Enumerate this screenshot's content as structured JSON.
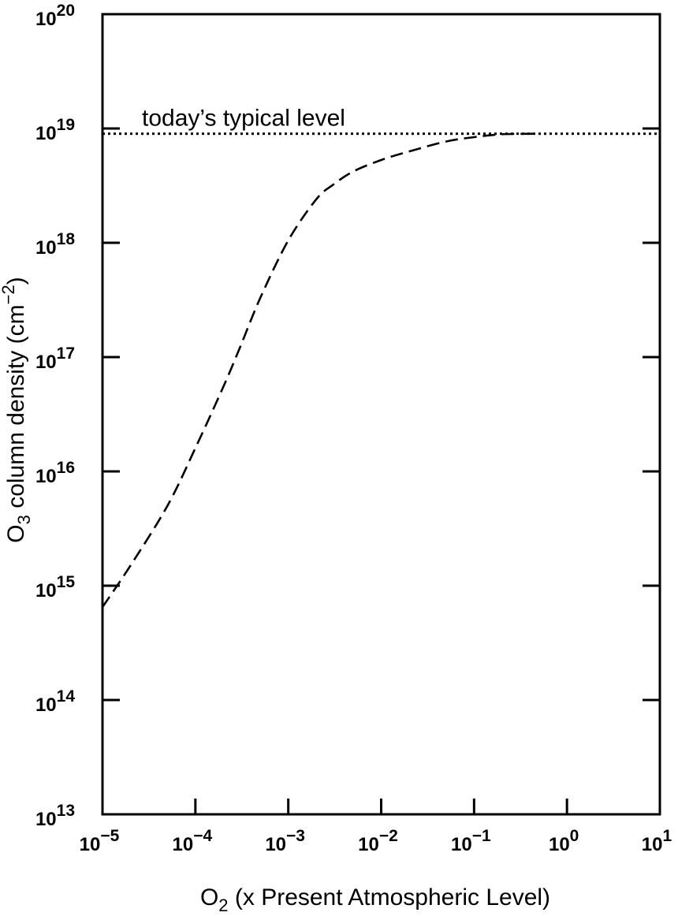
{
  "chart_data": {
    "type": "line",
    "title": "",
    "xlabel": "O₂ (x Present Atmospheric Level)",
    "ylabel": "O₃ column density (cm⁻²)",
    "xscale": "log",
    "yscale": "log",
    "xlim": [
      1e-05,
      10
    ],
    "ylim": [
      10000000000000.0,
      1e+20
    ],
    "grid": false,
    "x_ticks": [
      {
        "value": 1e-05,
        "base": "10",
        "exp": "−5"
      },
      {
        "value": 0.0001,
        "base": "10",
        "exp": "−4"
      },
      {
        "value": 0.001,
        "base": "10",
        "exp": "−3"
      },
      {
        "value": 0.01,
        "base": "10",
        "exp": "−2"
      },
      {
        "value": 0.1,
        "base": "10",
        "exp": "−1"
      },
      {
        "value": 1,
        "base": "10",
        "exp": "0"
      },
      {
        "value": 10,
        "base": "10",
        "exp": "1"
      }
    ],
    "y_ticks": [
      {
        "value": 10000000000000.0,
        "base": "10",
        "exp": "13"
      },
      {
        "value": 100000000000000.0,
        "base": "10",
        "exp": "14"
      },
      {
        "value": 1000000000000000.0,
        "base": "10",
        "exp": "15"
      },
      {
        "value": 1e+16,
        "base": "10",
        "exp": "16"
      },
      {
        "value": 1e+17,
        "base": "10",
        "exp": "17"
      },
      {
        "value": 1e+18,
        "base": "10",
        "exp": "18"
      },
      {
        "value": 1e+19,
        "base": "10",
        "exp": "19"
      },
      {
        "value": 1e+20,
        "base": "10",
        "exp": "20"
      }
    ],
    "series": [
      {
        "style": "dashed",
        "x": [
          1e-05,
          2e-05,
          5e-05,
          0.0001,
          0.0002,
          0.0003,
          0.0005,
          0.001,
          0.002,
          0.003,
          0.005,
          0.01,
          0.02,
          0.05,
          0.1,
          0.2,
          0.5
        ],
        "y": [
          650000000000000.0,
          1500000000000000.0,
          5000000000000000.0,
          1.6e+16,
          5.5e+16,
          1.2e+17,
          3.3e+17,
          1.05e+18,
          2.4e+18,
          3.2e+18,
          4.2e+18,
          5.3e+18,
          6.3e+18,
          7.7e+18,
          8.4e+18,
          8.9e+18,
          9e+18
        ]
      }
    ],
    "annotations": [
      {
        "text": "today’s typical level",
        "type": "hline",
        "y": 9e+18,
        "style": "dotted"
      }
    ]
  }
}
